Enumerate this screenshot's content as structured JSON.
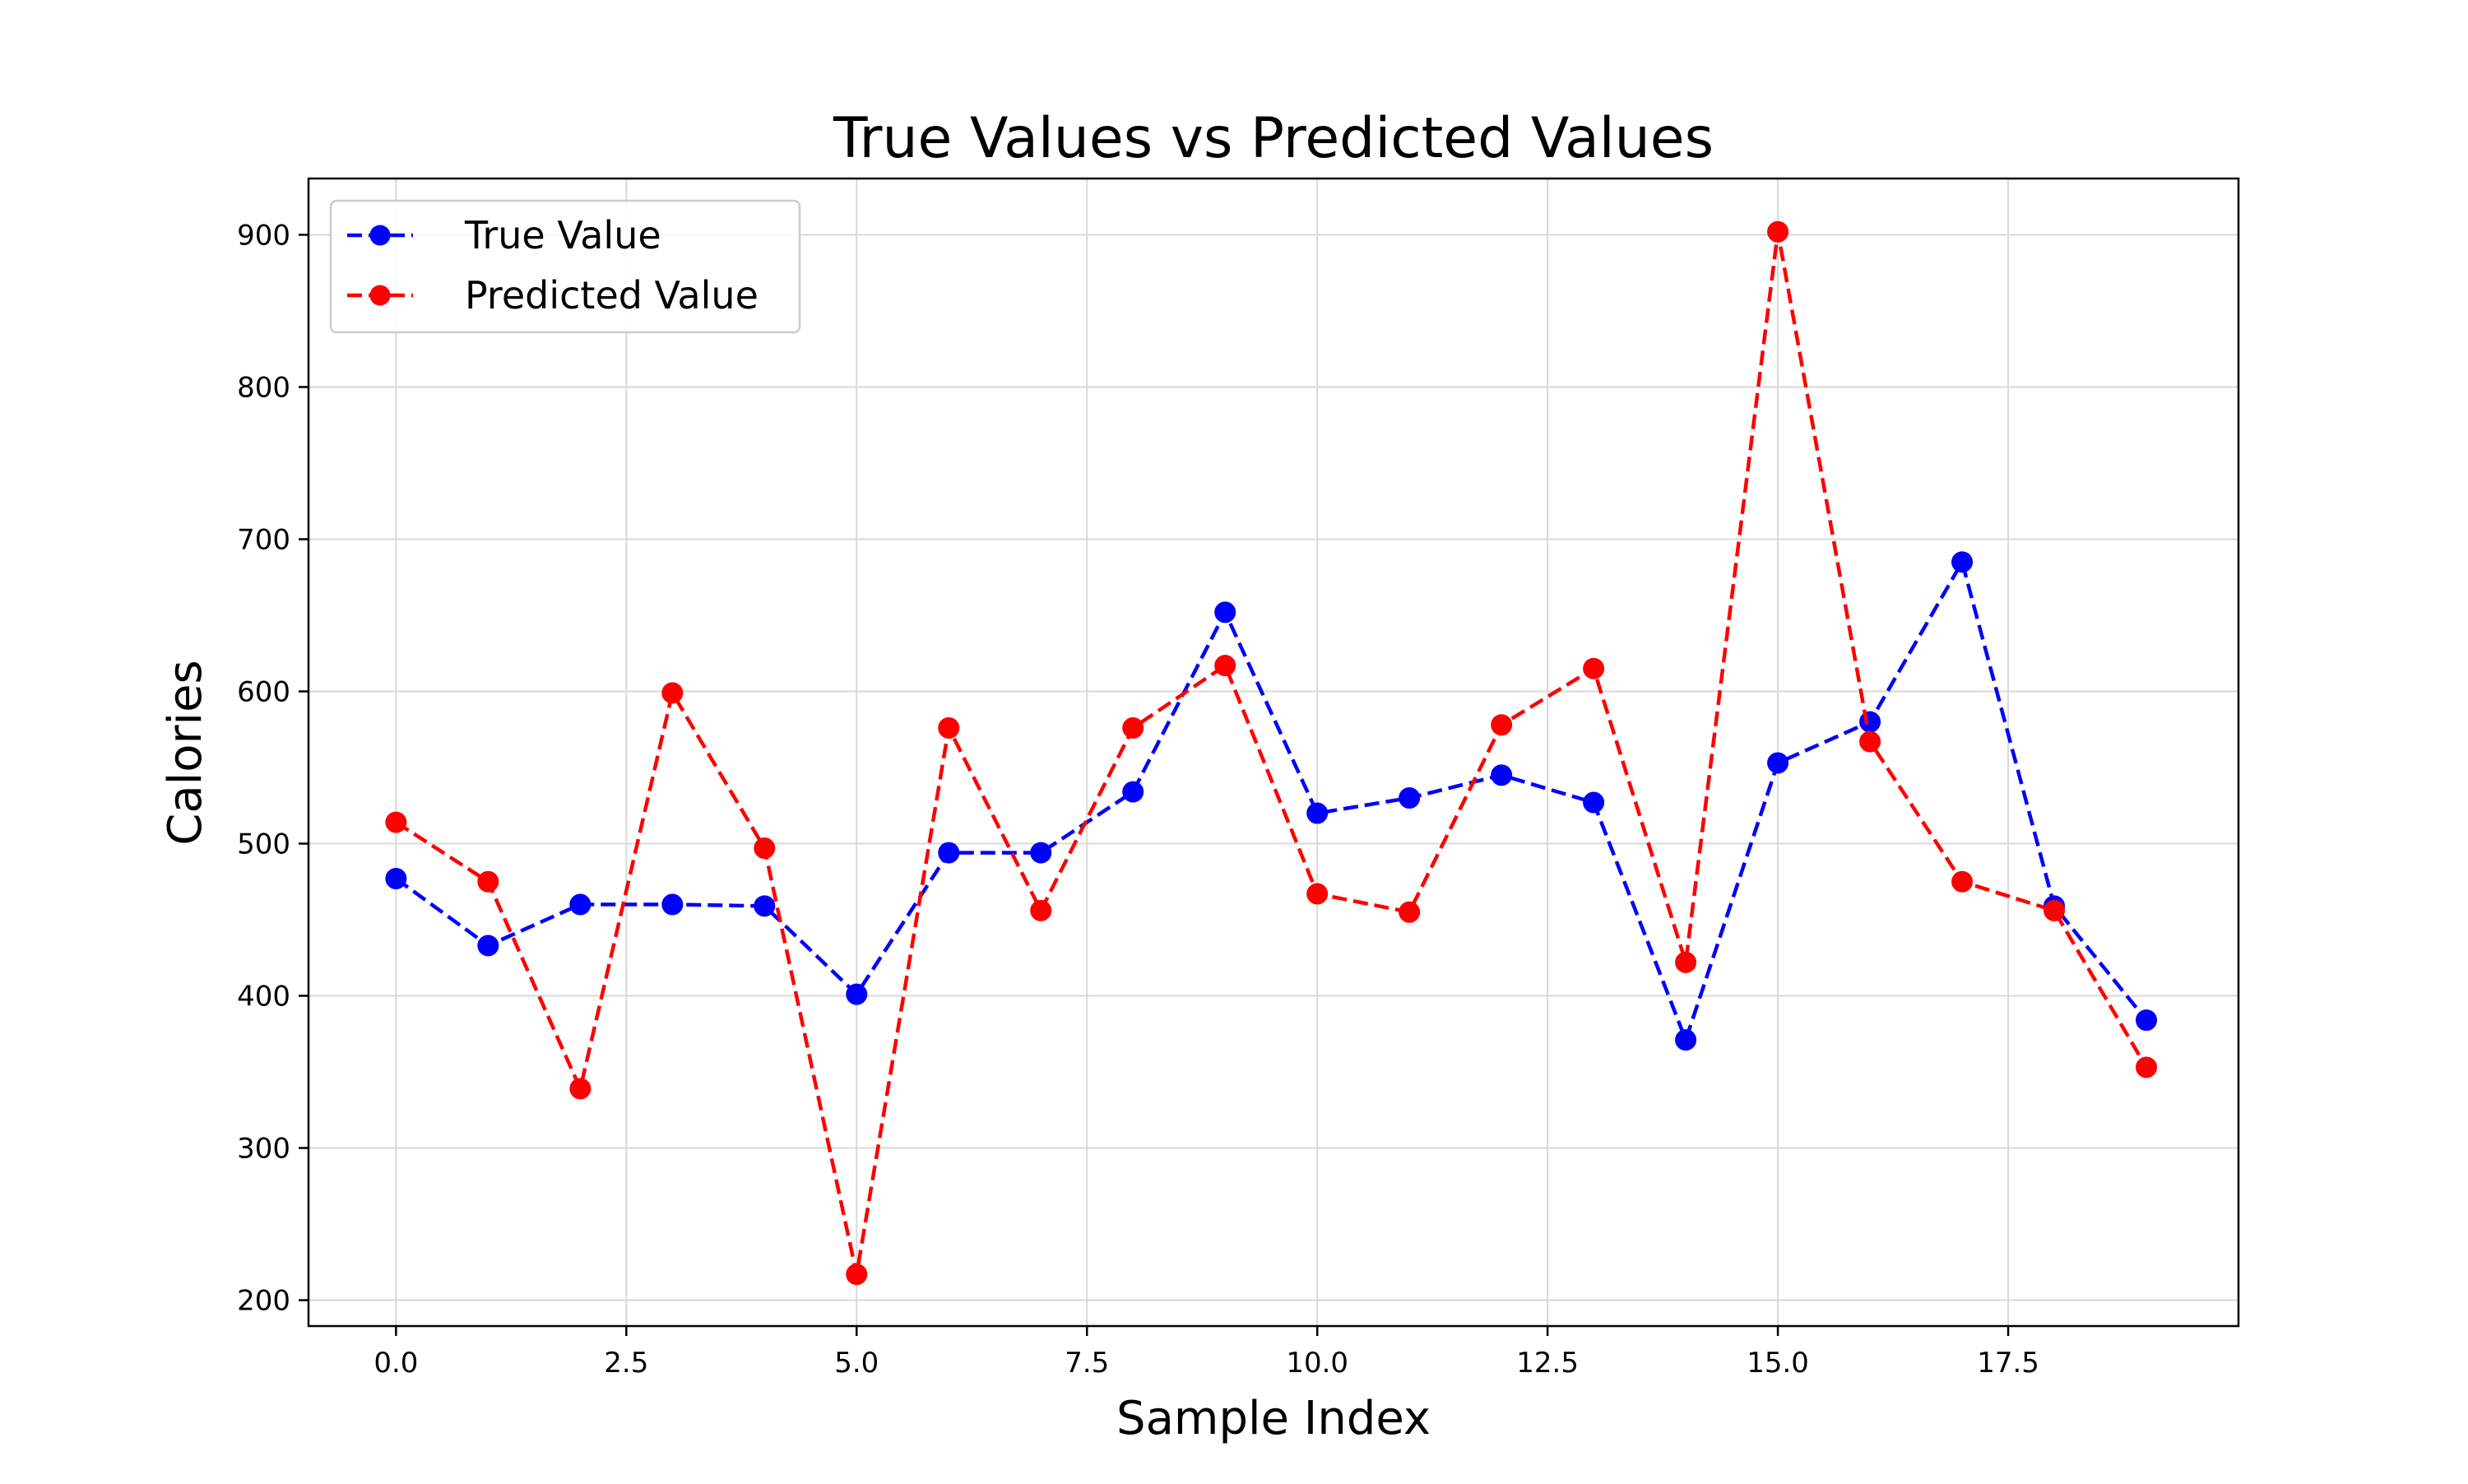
{
  "chart_data": {
    "type": "line",
    "title": "True Values vs Predicted Values",
    "xlabel": "Sample Index",
    "ylabel": "Calories",
    "x": [
      0,
      1,
      2,
      3,
      4,
      5,
      6,
      7,
      8,
      9,
      10,
      11,
      12,
      13,
      14,
      15,
      16,
      17,
      18,
      19
    ],
    "series": [
      {
        "name": "True Value",
        "color": "#0000ff",
        "marker": "circle",
        "linestyle": "dashed",
        "values": [
          477,
          433,
          460,
          460,
          459,
          401,
          494,
          494,
          534,
          652,
          520,
          530,
          545,
          527,
          371,
          553,
          580,
          685,
          459,
          384
        ]
      },
      {
        "name": "Predicted Value",
        "color": "#ff0000",
        "marker": "circle",
        "linestyle": "dashed",
        "values": [
          514,
          475,
          339,
          599,
          497,
          217,
          576,
          456,
          576,
          617,
          467,
          455,
          578,
          615,
          422,
          902,
          567,
          475,
          456,
          353
        ]
      }
    ],
    "xlim": [
      -0.95,
      20.0
    ],
    "ylim": [
      183,
      937
    ],
    "xticks": [
      0.0,
      2.5,
      5.0,
      7.5,
      10.0,
      12.5,
      15.0,
      17.5
    ],
    "xtick_labels": [
      "0.0",
      "2.5",
      "5.0",
      "7.5",
      "10.0",
      "12.5",
      "15.0",
      "17.5"
    ],
    "yticks": [
      200,
      300,
      400,
      500,
      600,
      700,
      800,
      900
    ],
    "ytick_labels": [
      "200",
      "300",
      "400",
      "500",
      "600",
      "700",
      "800",
      "900"
    ],
    "grid": true,
    "legend_position": "top-left"
  }
}
